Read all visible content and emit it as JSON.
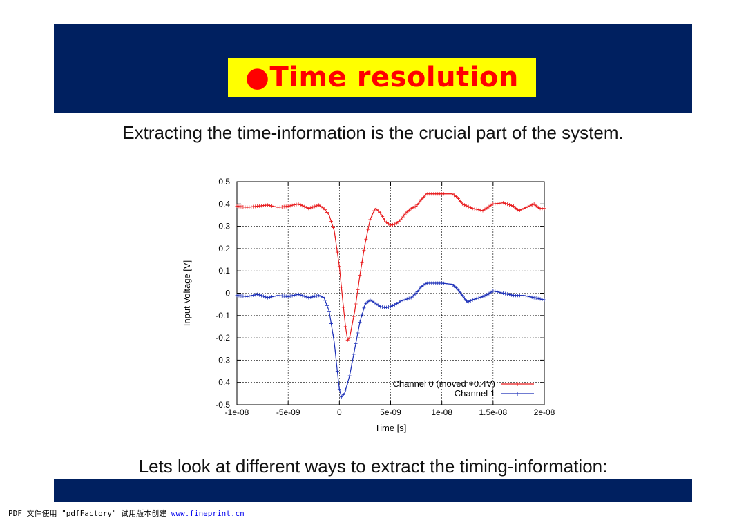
{
  "slide": {
    "title": "●Time resolution",
    "subtitle": "Extracting the time-information is the crucial part of the system.",
    "bottom_text": "Lets look at different ways to extract the timing-information:"
  },
  "footer": {
    "prefix": "PDF 文件使用 \"pdfFactory\" 试用版本创建 ",
    "link_text": "www.fineprint.cn"
  },
  "colors": {
    "header_band": "#002060",
    "title_box": "#ffff00",
    "title_text": "#ff0000",
    "channel0": "#e8191b",
    "channel1": "#1b2fb8"
  },
  "chart_data": {
    "type": "line",
    "xlabel": "Time [s]",
    "ylabel": "Input Voltage [V]",
    "xlim": [
      -1e-08,
      2e-08
    ],
    "ylim": [
      -0.5,
      0.5
    ],
    "grid": true,
    "legend_position": "bottom-right",
    "x_ticks": [
      -1e-08,
      -5e-09,
      0,
      5e-09,
      1e-08,
      1.5e-08,
      2e-08
    ],
    "x_tick_labels": [
      "-1e-08",
      "-5e-09",
      "0",
      "5e-09",
      "1e-08",
      "1.5e-08",
      "2e-08"
    ],
    "y_ticks": [
      0.5,
      0.4,
      0.3,
      0.2,
      0.1,
      0,
      -0.1,
      -0.2,
      -0.3,
      -0.4,
      -0.5
    ],
    "y_tick_labels": [
      "0.5",
      "0.4",
      "0.3",
      "0.2",
      "0.1",
      "0",
      "-0.1",
      "-0.2",
      "-0.3",
      "-0.4",
      "-0.5"
    ],
    "series": [
      {
        "name": "Channel 0 (moved +0.4V)",
        "color": "#e8191b",
        "points": [
          [
            -1e-08,
            0.39
          ],
          [
            -9e-09,
            0.385
          ],
          [
            -8e-09,
            0.39
          ],
          [
            -7e-09,
            0.395
          ],
          [
            -6e-09,
            0.385
          ],
          [
            -5e-09,
            0.39
          ],
          [
            -4e-09,
            0.4
          ],
          [
            -3e-09,
            0.38
          ],
          [
            -2e-09,
            0.395
          ],
          [
            -1.5e-09,
            0.38
          ],
          [
            -1e-09,
            0.35
          ],
          [
            -5e-10,
            0.28
          ],
          [
            0,
            0.12
          ],
          [
            3e-10,
            -0.02
          ],
          [
            6e-10,
            -0.15
          ],
          [
            8e-10,
            -0.21
          ],
          [
            1e-09,
            -0.2
          ],
          [
            1.5e-09,
            -0.08
          ],
          [
            2e-09,
            0.08
          ],
          [
            2.5e-09,
            0.22
          ],
          [
            3e-09,
            0.33
          ],
          [
            3.5e-09,
            0.38
          ],
          [
            4e-09,
            0.36
          ],
          [
            4.5e-09,
            0.32
          ],
          [
            5e-09,
            0.305
          ],
          [
            5.5e-09,
            0.31
          ],
          [
            6e-09,
            0.33
          ],
          [
            6.5e-09,
            0.36
          ],
          [
            7e-09,
            0.38
          ],
          [
            7.5e-09,
            0.39
          ],
          [
            8e-09,
            0.42
          ],
          [
            8.5e-09,
            0.445
          ],
          [
            1e-08,
            0.445
          ],
          [
            1.1e-08,
            0.445
          ],
          [
            1.15e-08,
            0.43
          ],
          [
            1.2e-08,
            0.4
          ],
          [
            1.3e-08,
            0.38
          ],
          [
            1.4e-08,
            0.37
          ],
          [
            1.45e-08,
            0.385
          ],
          [
            1.5e-08,
            0.4
          ],
          [
            1.6e-08,
            0.405
          ],
          [
            1.7e-08,
            0.39
          ],
          [
            1.75e-08,
            0.37
          ],
          [
            1.8e-08,
            0.38
          ],
          [
            1.9e-08,
            0.4
          ],
          [
            1.95e-08,
            0.38
          ],
          [
            2e-08,
            0.38
          ]
        ]
      },
      {
        "name": "Channel 1",
        "color": "#1b2fb8",
        "points": [
          [
            -1e-08,
            -0.01
          ],
          [
            -9e-09,
            -0.015
          ],
          [
            -8e-09,
            -0.005
          ],
          [
            -7e-09,
            -0.02
          ],
          [
            -6e-09,
            -0.01
          ],
          [
            -5e-09,
            -0.015
          ],
          [
            -4e-09,
            -0.005
          ],
          [
            -3e-09,
            -0.02
          ],
          [
            -2e-09,
            -0.01
          ],
          [
            -1.5e-09,
            -0.02
          ],
          [
            -1e-09,
            -0.08
          ],
          [
            -5e-10,
            -0.22
          ],
          [
            -2e-10,
            -0.35
          ],
          [
            0,
            -0.43
          ],
          [
            2e-10,
            -0.465
          ],
          [
            5e-10,
            -0.45
          ],
          [
            1e-09,
            -0.37
          ],
          [
            1.5e-09,
            -0.25
          ],
          [
            2e-09,
            -0.13
          ],
          [
            2.5e-09,
            -0.05
          ],
          [
            3e-09,
            -0.03
          ],
          [
            3.5e-09,
            -0.045
          ],
          [
            4e-09,
            -0.06
          ],
          [
            4.5e-09,
            -0.065
          ],
          [
            5e-09,
            -0.06
          ],
          [
            5.5e-09,
            -0.05
          ],
          [
            6e-09,
            -0.035
          ],
          [
            7e-09,
            -0.02
          ],
          [
            7.5e-09,
            0.0
          ],
          [
            8e-09,
            0.03
          ],
          [
            8.5e-09,
            0.045
          ],
          [
            1e-08,
            0.045
          ],
          [
            1.1e-08,
            0.04
          ],
          [
            1.15e-08,
            0.02
          ],
          [
            1.2e-08,
            -0.01
          ],
          [
            1.25e-08,
            -0.04
          ],
          [
            1.3e-08,
            -0.03
          ],
          [
            1.4e-08,
            -0.015
          ],
          [
            1.45e-08,
            -0.005
          ],
          [
            1.5e-08,
            0.01
          ],
          [
            1.6e-08,
            0.0
          ],
          [
            1.7e-08,
            -0.01
          ],
          [
            1.8e-08,
            -0.01
          ],
          [
            1.9e-08,
            -0.02
          ],
          [
            2e-08,
            -0.03
          ]
        ]
      }
    ]
  }
}
